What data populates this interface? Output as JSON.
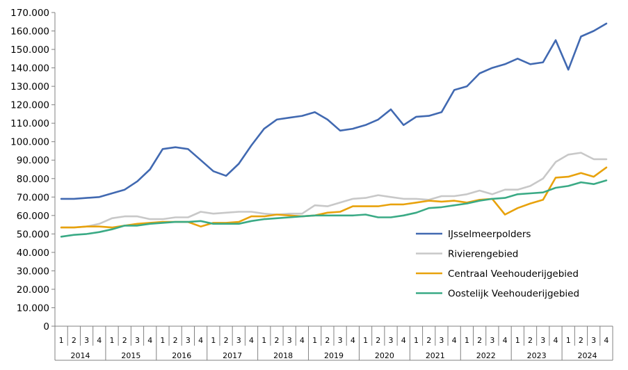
{
  "chart_data": {
    "type": "line",
    "title": "",
    "xlabel": "",
    "ylabel": "",
    "ylim": [
      0,
      170000
    ],
    "y_ticks": [
      "0",
      "10.000",
      "20.000",
      "30.000",
      "40.000",
      "50.000",
      "60.000",
      "70.000",
      "80.000",
      "90.000",
      "100.000",
      "110.000",
      "120.000",
      "130.000",
      "140.000",
      "150.000",
      "160.000",
      "170.000"
    ],
    "y_tick_values": [
      0,
      10000,
      20000,
      30000,
      40000,
      50000,
      60000,
      70000,
      80000,
      90000,
      100000,
      110000,
      120000,
      130000,
      140000,
      150000,
      160000,
      170000
    ],
    "years": [
      "2014",
      "2015",
      "2016",
      "2017",
      "2018",
      "2019",
      "2020",
      "2021",
      "2022",
      "2023",
      "2024"
    ],
    "quarters": [
      "1",
      "2",
      "3",
      "4"
    ],
    "legend_position": "bottom-right",
    "grid": false,
    "series": [
      {
        "name": "IJsselmeerpolders",
        "color": "#4169b1",
        "values": [
          69000,
          69000,
          69500,
          70000,
          72000,
          74000,
          78500,
          85000,
          96000,
          97000,
          96000,
          90000,
          84000,
          81500,
          88000,
          98000,
          107000,
          112000,
          113000,
          114000,
          116000,
          112000,
          106000,
          107000,
          109000,
          112000,
          117500,
          109000,
          113500,
          114000,
          116000,
          128000,
          130000,
          137000,
          140000,
          142000,
          145000,
          142000,
          143000,
          155000,
          139000,
          157000,
          160000,
          164000
        ]
      },
      {
        "name": "Rivierengebied",
        "color": "#c8c8c8",
        "values": [
          53500,
          53500,
          54000,
          55500,
          58500,
          59500,
          59500,
          58000,
          58000,
          59000,
          59000,
          62000,
          61000,
          61500,
          62000,
          62000,
          61000,
          60500,
          61000,
          61000,
          65500,
          65000,
          67000,
          69000,
          69500,
          71000,
          70000,
          69000,
          69000,
          68500,
          70500,
          70500,
          71500,
          73500,
          71500,
          74000,
          74000,
          76000,
          80000,
          89000,
          93000,
          94000,
          90500,
          90500
        ]
      },
      {
        "name": "Centraal Veehouderijgebied",
        "color": "#e8a20c",
        "values": [
          53500,
          53500,
          54000,
          54000,
          53500,
          54500,
          55500,
          56000,
          56500,
          56500,
          56500,
          54000,
          56000,
          56000,
          56500,
          59500,
          59500,
          60500,
          60000,
          59500,
          60000,
          61500,
          62000,
          65000,
          65000,
          65000,
          66000,
          66000,
          67000,
          68000,
          67500,
          68000,
          67000,
          68500,
          69000,
          60500,
          64000,
          66500,
          68500,
          80500,
          81000,
          83000,
          81000,
          86000
        ]
      },
      {
        "name": "Oostelijk Veehouderijgebied",
        "color": "#3aaa85",
        "values": [
          48500,
          49500,
          50000,
          51000,
          52500,
          54500,
          54500,
          55500,
          56000,
          56500,
          56500,
          57000,
          55500,
          55500,
          55500,
          57000,
          58000,
          58500,
          59000,
          59500,
          60000,
          60000,
          60000,
          60000,
          60500,
          59000,
          59000,
          60000,
          61500,
          64000,
          64500,
          65500,
          66500,
          68000,
          69000,
          69500,
          71500,
          72000,
          72500,
          75000,
          76000,
          78000,
          77000,
          79000
        ]
      }
    ]
  }
}
